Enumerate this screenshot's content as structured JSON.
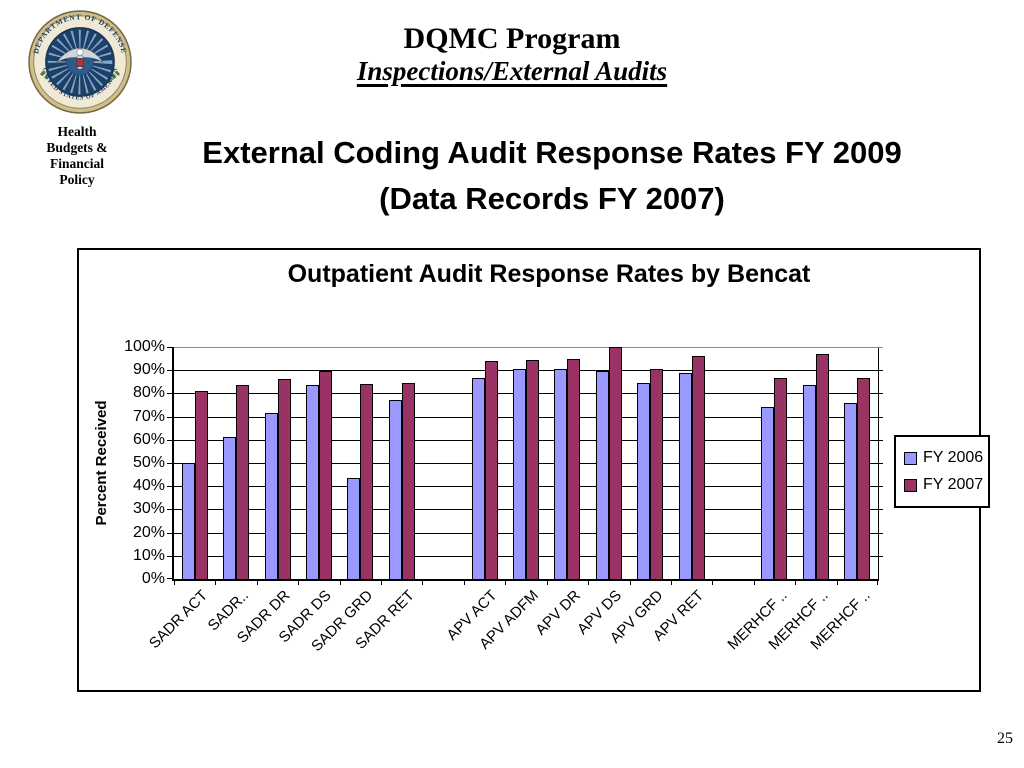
{
  "slide": {
    "header": {
      "line1": "DQMC Program",
      "line2": "Inspections/External Audits"
    },
    "logo": {
      "seal_top": "DEPARTMENT OF DEFENSE",
      "seal_bottom": "UNITED STATES OF AMERICA",
      "caption_lines": [
        "Health",
        "Budgets &",
        "Financial",
        "Policy"
      ]
    },
    "subtitle": {
      "line1": "External Coding Audit Response Rates FY 2009",
      "line2": "(Data Records FY 2007)"
    },
    "page_number": "25"
  },
  "chart_data": {
    "type": "bar",
    "title": "Outpatient Audit Response Rates by Bencat",
    "xlabel": "",
    "ylabel": "Percent Received",
    "unit": "%",
    "ylim": [
      0,
      100
    ],
    "ytick_step": 10,
    "ytick_labels": [
      "0%",
      "10%",
      "20%",
      "30%",
      "40%",
      "50%",
      "60%",
      "70%",
      "80%",
      "90%",
      "100%"
    ],
    "grid": true,
    "legend_position": "right",
    "categories": [
      "SADR ACT",
      "SADR..",
      "SADR DR",
      "SADR DS",
      "SADR GRD",
      "SADR RET",
      "",
      "APV ACT",
      "APV ADFM",
      "APV DR",
      "APV DS",
      "APV GRD",
      "APV RET",
      "",
      "MERHCF ..",
      "MERHCF ..",
      "MERHCF .."
    ],
    "series": [
      {
        "name": "FY 2006",
        "color": "#9999FF",
        "values": [
          50,
          61,
          71.5,
          83.5,
          43.5,
          77,
          null,
          86.5,
          90.5,
          90.5,
          89.5,
          84.5,
          89,
          null,
          74,
          83.5,
          76
        ]
      },
      {
        "name": "FY 2007",
        "color": "#993366",
        "values": [
          81,
          83.5,
          86,
          89.5,
          84,
          84.5,
          null,
          94,
          94.5,
          95,
          100,
          90.5,
          96,
          null,
          86.5,
          97,
          86.5
        ]
      }
    ]
  }
}
